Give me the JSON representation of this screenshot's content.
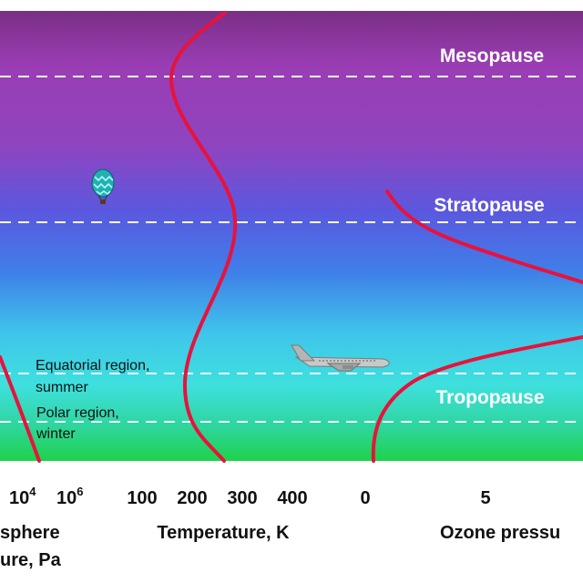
{
  "layers": {
    "mesopause": "Mesopause",
    "stratopause": "Stratopause",
    "tropopause": "Tropopause"
  },
  "regions": {
    "equatorial_line1": "Equatorial region,",
    "equatorial_line2": "summer",
    "polar_line1": "Polar region,",
    "polar_line2": "winter"
  },
  "axes": {
    "pressure": {
      "ticks": [
        {
          "base": "10",
          "exp": "4"
        },
        {
          "base": "10",
          "exp": "6"
        }
      ],
      "title_line1": "sphere",
      "title_line2": "ure, Pa"
    },
    "temperature": {
      "ticks": [
        "100",
        "200",
        "300",
        "400"
      ],
      "title": "Temperature, K"
    },
    "ozone": {
      "ticks": [
        "0",
        "5"
      ],
      "title": "Ozone pressu"
    }
  },
  "colors": {
    "curve": "#e8123c",
    "layer_line": "#ffffff",
    "top_band": "#7a2f86",
    "bottom_band": "#1fd24a"
  },
  "icons": [
    "balloon-icon",
    "airplane-icon"
  ]
}
